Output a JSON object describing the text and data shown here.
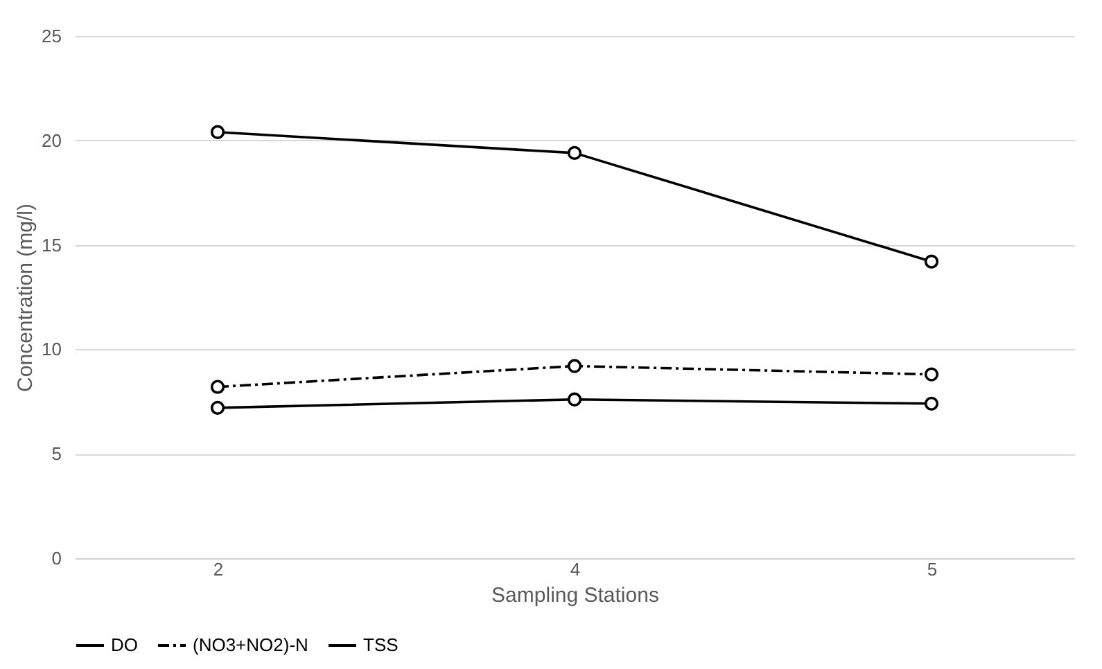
{
  "chart_data": {
    "type": "line",
    "xlabel": "Sampling Stations",
    "ylabel": "Concentration (mg/l)",
    "categories": [
      "2",
      "4",
      "5"
    ],
    "series": [
      {
        "name": "DO",
        "color": "#000000",
        "values": [
          7.2,
          7.6,
          7.4
        ],
        "line_style": "solid"
      },
      {
        "name": "(NO3+NO2)-N",
        "color": "#000000",
        "values": [
          8.2,
          9.2,
          8.8
        ],
        "line_style": "dashed"
      },
      {
        "name": "TSS",
        "color": "#000000",
        "values": [
          20.4,
          19.4,
          14.2
        ],
        "line_style": "solid"
      }
    ],
    "ylim": [
      0,
      25
    ],
    "yticks": [
      0,
      5,
      10,
      15,
      20,
      25
    ],
    "grid": "y",
    "legend": "bottom",
    "marker": "circle"
  }
}
